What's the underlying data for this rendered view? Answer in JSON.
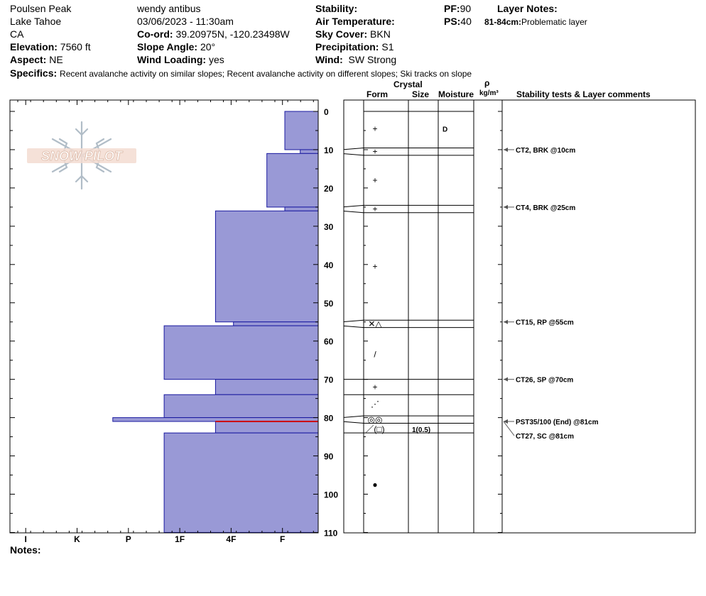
{
  "header": {
    "location_name": "Poulsen Peak",
    "region": "Lake Tahoe",
    "state": "CA",
    "elevation_label": "Elevation:",
    "elevation": "7560 ft",
    "aspect_label": "Aspect:",
    "aspect": "NE",
    "observer": "wendy antibus",
    "datetime": "03/06/2023 - 11:30am",
    "coord_label": "Co-ord:",
    "coord": "39.20975N, -120.23498W",
    "slope_label": "Slope Angle:",
    "slope": "20°",
    "wind_loading_label": "Wind Loading:",
    "wind_loading": "yes",
    "stability_label": "Stability:",
    "air_temp_label": "Air Temperature:",
    "sky_label": "Sky Cover:",
    "sky": "BKN",
    "precip_label": "Precipitation:",
    "precip": "S1",
    "wind_label": "Wind:",
    "wind": "SW Strong",
    "pf_label": "PF:",
    "pf": "90",
    "ps_label": "PS:",
    "ps": "40",
    "layer_notes_label": "Layer Notes:",
    "layer_note_range": "81-84cm:",
    "layer_note_text": "Problematic layer",
    "specifics_label": "Specifics:",
    "specifics": "Recent avalanche activity on similar slopes; Recent avalanche activity on different slopes; Ski tracks on slope",
    "notes_label": "Notes:"
  },
  "logo": {
    "text": "SNOW PILOT"
  },
  "columns": {
    "crystal": "Crystal",
    "form": "Form",
    "size": "Size",
    "moisture": "Moisture",
    "rho": "ρ",
    "density_unit": "kg/m³",
    "stability": "Stability tests & Layer comments"
  },
  "colors": {
    "hardness_fill": "#9999d6",
    "hardness_stroke": "#1a1aa0",
    "problem_layer": "#cc0000"
  },
  "chart_data": {
    "type": "bar",
    "orientation": "horizontal",
    "depth_axis": {
      "range": [
        0,
        110
      ],
      "ticks": [
        0,
        10,
        20,
        30,
        40,
        50,
        60,
        70,
        80,
        90,
        100,
        110
      ]
    },
    "hardness_categories": [
      "I",
      "K",
      "P",
      "1F",
      "4F",
      "F"
    ],
    "hardness_scale_note": "hardness index from right edge: F=1, 4F=2, 1F=3, P=4, K=5, I=6",
    "layers": [
      {
        "top": 0,
        "bottom": 10,
        "hardness": 0.65
      },
      {
        "top": 10,
        "bottom": 11,
        "hardness": 0.35
      },
      {
        "top": 11,
        "bottom": 25,
        "hardness": 1.0
      },
      {
        "top": 25,
        "bottom": 26,
        "hardness": 0.65
      },
      {
        "top": 26,
        "bottom": 55,
        "hardness": 2.0
      },
      {
        "top": 55,
        "bottom": 56,
        "hardness": 1.65
      },
      {
        "top": 56,
        "bottom": 70,
        "hardness": 3.0
      },
      {
        "top": 70,
        "bottom": 74,
        "hardness": 2.0
      },
      {
        "top": 74,
        "bottom": 80,
        "hardness": 3.0
      },
      {
        "top": 80,
        "bottom": 81,
        "hardness": 4.0
      },
      {
        "top": 81,
        "bottom": 84,
        "hardness": 2.0
      },
      {
        "top": 84,
        "bottom": 110,
        "hardness": 3.0
      }
    ],
    "problem_layer_depth": 81,
    "layer_boundaries": [
      0,
      10,
      11,
      25,
      26,
      55,
      56,
      70,
      74,
      80,
      81,
      84,
      110
    ],
    "crystal_symbols": [
      {
        "depth": 4.5,
        "symbol": "+"
      },
      {
        "depth": 10.5,
        "symbol": "+"
      },
      {
        "depth": 18,
        "symbol": "+"
      },
      {
        "depth": 25.5,
        "symbol": "+"
      },
      {
        "depth": 40.5,
        "symbol": "+"
      },
      {
        "depth": 55.5,
        "symbol": "✕△"
      },
      {
        "depth": 63.5,
        "symbol": "/"
      },
      {
        "depth": 72,
        "symbol": "+"
      },
      {
        "depth": 76.5,
        "symbol": "⋰"
      },
      {
        "depth": 80.5,
        "symbol": "◎◎"
      },
      {
        "depth": 83,
        "symbol": "／(□)"
      },
      {
        "depth": 97.5,
        "symbol": "●"
      }
    ],
    "crystal_sizes": [
      {
        "depth": 83,
        "text": "1(0.5)"
      }
    ],
    "moisture": [
      {
        "depth": 4.5,
        "text": "D"
      }
    ],
    "stability_tests": [
      {
        "depth": 10,
        "text": "CT2, BRK @10cm"
      },
      {
        "depth": 25,
        "text": "CT4, BRK @25cm"
      },
      {
        "depth": 55,
        "text": "CT15, RP @55cm"
      },
      {
        "depth": 70,
        "text": "CT26, SP @70cm"
      },
      {
        "depth": 81,
        "text": "PST35/100 (End) @81cm"
      },
      {
        "depth": 81,
        "text": "CT27, SC @81cm"
      }
    ]
  }
}
